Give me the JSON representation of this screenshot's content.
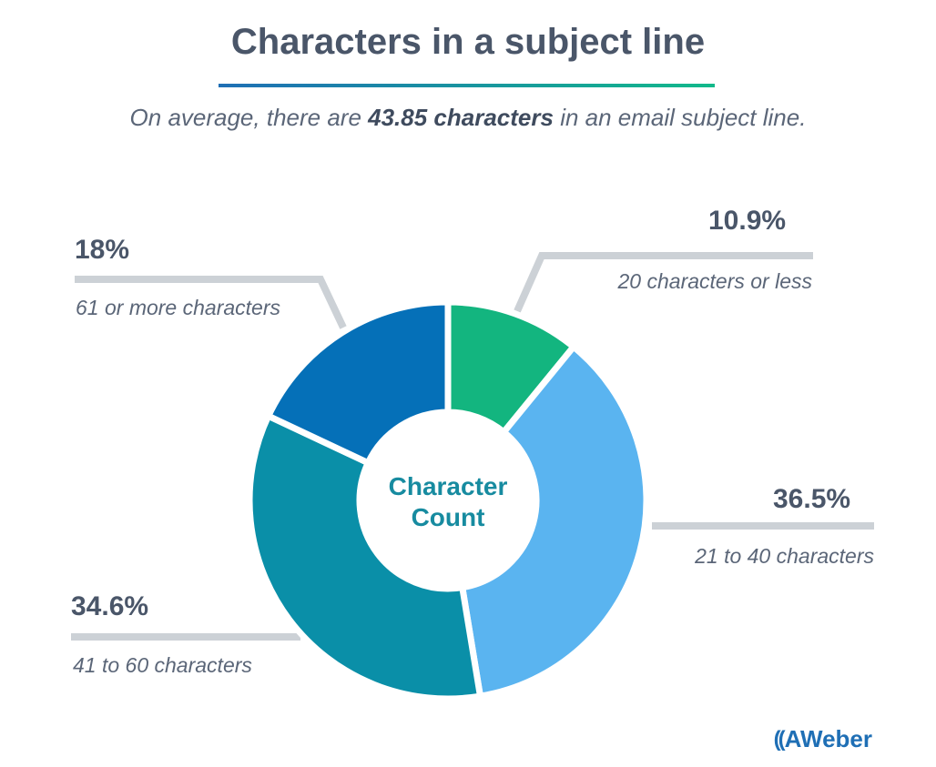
{
  "title": "Characters in a subject line",
  "subtitle": {
    "before": "On average, there are ",
    "highlight": "43.85 characters",
    "after": " in an email subject line."
  },
  "center_label": {
    "line1": "Character",
    "line2": "Count"
  },
  "logo": {
    "mark": "((",
    "text": "AWeber"
  },
  "colors": {
    "title_rule_start": "#1f6fb5",
    "title_rule_end": "#12b98a",
    "connector": "#ccd1d6",
    "center_text": "#178ba0"
  },
  "chart_data": {
    "type": "pie",
    "variant": "donut",
    "slices": [
      {
        "label": "20 characters or less",
        "pct_label": "10.9%",
        "value": 10.9,
        "color": "#13b57f"
      },
      {
        "label": "21 to 40 characters",
        "pct_label": "36.5%",
        "value": 36.5,
        "color": "#5ab4f0"
      },
      {
        "label": "41 to 60 characters",
        "pct_label": "34.6%",
        "value": 34.6,
        "color": "#0a8fa8"
      },
      {
        "label": "61 or more characters",
        "pct_label": "18%",
        "value": 18.0,
        "color": "#0570b8"
      }
    ]
  }
}
